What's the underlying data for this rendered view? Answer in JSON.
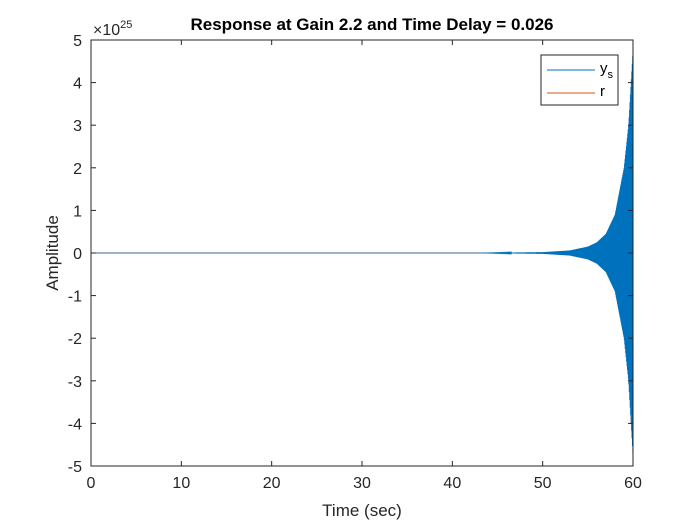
{
  "chart_data": {
    "type": "line",
    "title": "Response at Gain 2.2 and Time Delay = 0.026",
    "xlabel": "Time (sec)",
    "ylabel": "Amplitude",
    "xlim": [
      0,
      60
    ],
    "ylim": [
      -5,
      5
    ],
    "x_ticks": [
      0,
      10,
      20,
      30,
      40,
      50,
      60
    ],
    "y_ticks": [
      -5,
      -4,
      -3,
      -2,
      -1,
      0,
      1,
      2,
      3,
      4,
      5
    ],
    "y_exponent": {
      "base": "×10",
      "power": "25"
    },
    "grid": false,
    "legend": "top-right",
    "series": [
      {
        "name": "y",
        "name_subscript": "s",
        "color": "#0072BD",
        "description": "oscillation growing exponentially, negligible until ~43 s",
        "envelope_x": [
          0,
          43,
          50,
          53,
          55,
          56,
          57,
          58,
          59,
          59.5,
          60
        ],
        "envelope_y": [
          0,
          0.0,
          0.02,
          0.06,
          0.15,
          0.25,
          0.45,
          0.9,
          2.0,
          3.0,
          4.8
        ]
      },
      {
        "name": "r",
        "color": "#D95319",
        "x": [
          0,
          60
        ],
        "y": [
          0,
          0
        ]
      }
    ]
  }
}
